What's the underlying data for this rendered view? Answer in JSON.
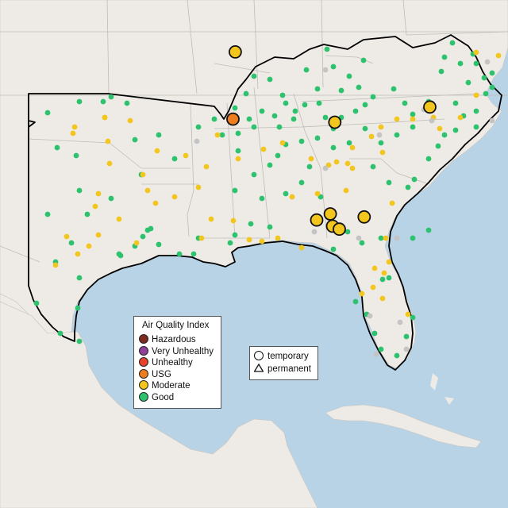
{
  "legend": {
    "title": "Air Quality Index",
    "items": [
      {
        "label": "Hazardous",
        "color": "#7e2a1e"
      },
      {
        "label": "Very Unhealthy",
        "color": "#8f3f97"
      },
      {
        "label": "Unhealthy",
        "color": "#e8432a"
      },
      {
        "label": "USG",
        "color": "#ee7d1f"
      },
      {
        "label": "Moderate",
        "color": "#f3c61d"
      },
      {
        "label": "Good",
        "color": "#2dc26e"
      }
    ]
  },
  "site_legend": {
    "temporary": "temporary",
    "permanent": "permanent"
  },
  "colors": {
    "water": "#b9d3e6",
    "land": "#eeebe6",
    "region_outline": "#000000",
    "offline": "#c4c4c4"
  },
  "sites": {
    "temporary_large": [
      {
        "aqi": "Moderate",
        "lon": -94.6,
        "lat": 36.6
      },
      {
        "aqi": "USG",
        "lon": -94.7,
        "lat": 34.4
      },
      {
        "aqi": "Moderate",
        "lon": -90.2,
        "lat": 34.3
      },
      {
        "aqi": "Moderate",
        "lon": -86.0,
        "lat": 34.8
      },
      {
        "aqi": "Moderate",
        "lon": -90.4,
        "lat": 31.3
      },
      {
        "aqi": "Moderate",
        "lon": -90.3,
        "lat": 30.9
      },
      {
        "aqi": "Moderate",
        "lon": -91.0,
        "lat": 31.1
      },
      {
        "aqi": "Moderate",
        "lon": -90.0,
        "lat": 30.8
      },
      {
        "aqi": "Moderate",
        "lon": -88.9,
        "lat": 31.2
      }
    ],
    "good_count": 150,
    "moderate_count": 80,
    "offline_count": 15
  }
}
